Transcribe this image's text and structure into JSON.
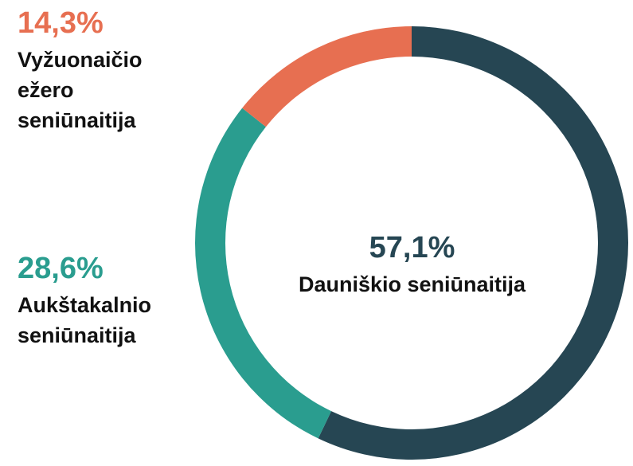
{
  "chart_data": {
    "type": "donut",
    "categories": [
      "Dauniškio seniūnaitija",
      "Aukštakalnio seniūnaitija",
      "Vyžuonaičio ežero seniūnaitija"
    ],
    "values": [
      57.1,
      28.6,
      14.3
    ],
    "value_labels": [
      "57,1%",
      "28,6%",
      "14,3%"
    ],
    "colors": [
      "#264653",
      "#2a9d8f",
      "#e76f51"
    ]
  }
}
